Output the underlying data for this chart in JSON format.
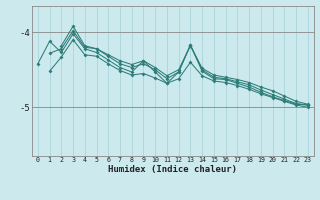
{
  "xlabel": "Humidex (Indice chaleur)",
  "bg_color": "#cce9ee",
  "line_color": "#2d7d78",
  "grid_color": "#aad4da",
  "axis_color": "#888888",
  "xlim": [
    -0.5,
    23.5
  ],
  "ylim": [
    -5.65,
    -3.65
  ],
  "yticks": [
    -5.0,
    -4.0
  ],
  "ytick_labels": [
    "-5",
    "-4"
  ],
  "xticks": [
    0,
    1,
    2,
    3,
    4,
    5,
    6,
    7,
    8,
    9,
    10,
    11,
    12,
    13,
    14,
    15,
    16,
    17,
    18,
    19,
    20,
    21,
    22,
    23
  ],
  "xtick_labels": [
    "0",
    "1",
    "2",
    "3",
    "4",
    "5",
    "6",
    "7",
    "8",
    "9",
    "10",
    "11",
    "12",
    "13",
    "14",
    "15",
    "16",
    "17",
    "18",
    "19",
    "20",
    "21",
    "22",
    "23"
  ],
  "series": [
    [
      null,
      null,
      -4.18,
      -3.92,
      -4.18,
      -4.22,
      -4.3,
      -4.38,
      -4.43,
      -4.38,
      -4.47,
      -4.58,
      -4.5,
      -4.18,
      -4.48,
      -4.57,
      -4.6,
      -4.63,
      -4.67,
      -4.73,
      -4.78,
      -4.85,
      -4.92,
      -4.96
    ],
    [
      null,
      -4.28,
      -4.22,
      -3.98,
      -4.2,
      -4.22,
      -4.32,
      -4.42,
      -4.47,
      -4.42,
      -4.5,
      -4.62,
      -4.53,
      -4.17,
      -4.5,
      -4.6,
      -4.62,
      -4.66,
      -4.7,
      -4.77,
      -4.83,
      -4.89,
      -4.95,
      -4.97
    ],
    [
      -4.42,
      -4.12,
      -4.27,
      -4.02,
      -4.22,
      -4.27,
      -4.37,
      -4.47,
      -4.53,
      -4.38,
      -4.53,
      -4.68,
      -4.53,
      -4.17,
      -4.52,
      -4.62,
      -4.63,
      -4.68,
      -4.73,
      -4.8,
      -4.86,
      -4.91,
      -4.96,
      -4.97
    ],
    [
      null,
      -4.52,
      -4.33,
      -4.1,
      -4.3,
      -4.32,
      -4.42,
      -4.51,
      -4.57,
      -4.55,
      -4.61,
      -4.68,
      -4.62,
      -4.4,
      -4.58,
      -4.65,
      -4.67,
      -4.71,
      -4.76,
      -4.82,
      -4.87,
      -4.92,
      -4.97,
      -5.0
    ]
  ]
}
